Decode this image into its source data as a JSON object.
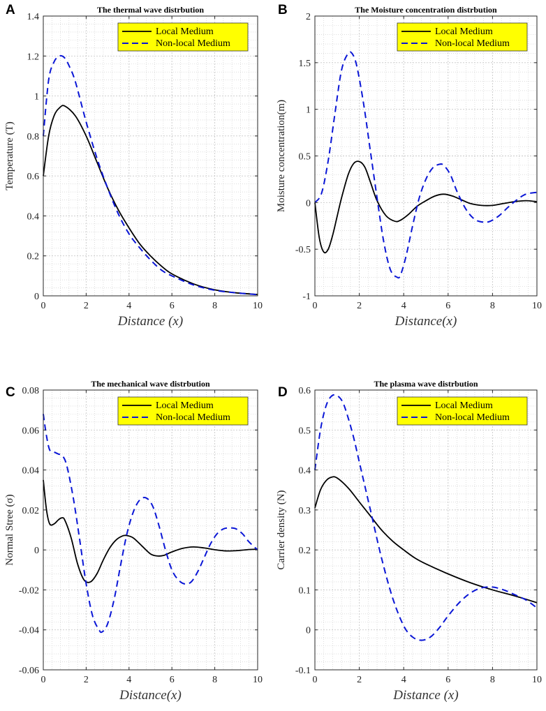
{
  "colors": {
    "local": "#000000",
    "nonlocal": "#0a16d6",
    "legend_bg": "#ffff00",
    "grid": "#c8c8c8",
    "axes": "#262626"
  },
  "legend": {
    "local_label": "Local Medium",
    "nonlocal_label": "Non-local Medium"
  },
  "chart_data": [
    {
      "panel": "A",
      "type": "line",
      "title": "The thermal wave distrbution",
      "xlabel": "Distance (x)",
      "ylabel": "Temperature (T)",
      "xlim": [
        0,
        10
      ],
      "ylim": [
        0,
        1.4
      ],
      "xticks": [
        0,
        2,
        4,
        6,
        8,
        10
      ],
      "xtick_labels": [
        "0",
        "2",
        "4",
        "6",
        "8",
        "10"
      ],
      "yticks": [
        0,
        0.2,
        0.4,
        0.6,
        0.8,
        1,
        1.2,
        1.4
      ],
      "ytick_labels": [
        "0",
        "0.2",
        "0.4",
        "0.6",
        "0.8",
        "1",
        "1.2",
        "1.4"
      ],
      "legend_position": "top-right",
      "series": [
        {
          "name": "Local Medium",
          "style": "solid",
          "x": [
            0,
            0.25,
            0.5,
            0.75,
            1,
            1.5,
            2,
            2.5,
            3,
            3.5,
            4,
            4.5,
            5,
            5.5,
            6,
            7,
            8,
            9,
            10
          ],
          "y": [
            0.6,
            0.8,
            0.9,
            0.94,
            0.95,
            0.9,
            0.8,
            0.67,
            0.54,
            0.43,
            0.34,
            0.26,
            0.2,
            0.15,
            0.11,
            0.06,
            0.03,
            0.015,
            0.007
          ]
        },
        {
          "name": "Non-local Medium",
          "style": "dashed",
          "x": [
            0,
            0.25,
            0.5,
            0.75,
            1,
            1.25,
            1.5,
            2,
            2.5,
            3,
            3.5,
            4,
            4.5,
            5,
            5.5,
            6,
            7,
            8,
            9,
            10
          ],
          "y": [
            0.8,
            1.08,
            1.17,
            1.2,
            1.19,
            1.14,
            1.07,
            0.87,
            0.69,
            0.54,
            0.41,
            0.31,
            0.24,
            0.18,
            0.13,
            0.1,
            0.055,
            0.028,
            0.015,
            0.006
          ]
        }
      ]
    },
    {
      "panel": "B",
      "type": "line",
      "title": "The Moisture concentration distrbution",
      "xlabel": "Distance(x)",
      "ylabel": "Moisture concentration(m)",
      "xlim": [
        0,
        10
      ],
      "ylim": [
        -1,
        2
      ],
      "xticks": [
        0,
        2,
        4,
        6,
        8,
        10
      ],
      "xtick_labels": [
        "0",
        "2",
        "4",
        "6",
        "8",
        "10"
      ],
      "yticks": [
        -1,
        -0.5,
        0,
        0.5,
        1,
        1.5,
        2
      ],
      "ytick_labels": [
        "-1",
        "-0.5",
        "0",
        "0.5",
        "1",
        "1.5",
        "2"
      ],
      "legend_position": "top-right",
      "series": [
        {
          "name": "Local Medium",
          "style": "solid",
          "x": [
            0,
            0.2,
            0.4,
            0.6,
            0.8,
            1,
            1.2,
            1.5,
            1.75,
            2,
            2.25,
            2.5,
            2.8,
            3.2,
            3.6,
            3.85,
            4.2,
            4.6,
            5,
            5.4,
            5.8,
            6.2,
            6.6,
            7,
            7.5,
            8,
            8.5,
            9,
            9.5,
            10
          ],
          "y": [
            0,
            -0.38,
            -0.53,
            -0.5,
            -0.35,
            -0.15,
            0.05,
            0.3,
            0.42,
            0.44,
            0.38,
            0.22,
            0.02,
            -0.14,
            -0.2,
            -0.19,
            -0.13,
            -0.04,
            0.02,
            0.07,
            0.09,
            0.07,
            0.03,
            -0.01,
            -0.03,
            -0.03,
            -0.01,
            0.01,
            0.02,
            0.01
          ]
        },
        {
          "name": "Non-local Medium",
          "style": "dashed",
          "x": [
            0,
            0.3,
            0.6,
            0.9,
            1.2,
            1.5,
            1.7,
            1.9,
            2.2,
            2.5,
            2.8,
            3.1,
            3.4,
            3.7,
            3.85,
            4.1,
            4.4,
            4.7,
            5,
            5.3,
            5.6,
            5.8,
            6.1,
            6.4,
            6.8,
            7.2,
            7.6,
            7.9,
            8.3,
            8.7,
            9.1,
            9.5,
            10
          ],
          "y": [
            0,
            0.1,
            0.45,
            0.95,
            1.42,
            1.6,
            1.59,
            1.45,
            1.05,
            0.55,
            0.05,
            -0.42,
            -0.72,
            -0.8,
            -0.78,
            -0.58,
            -0.25,
            0.05,
            0.25,
            0.37,
            0.41,
            0.4,
            0.3,
            0.12,
            -0.07,
            -0.18,
            -0.21,
            -0.2,
            -0.14,
            -0.05,
            0.03,
            0.09,
            0.11
          ]
        }
      ]
    },
    {
      "panel": "C",
      "type": "line",
      "title": "The mechanical wave distrbution",
      "xlabel": "Distance(x)",
      "ylabel": "Normal Stree (σ)",
      "xlim": [
        0,
        10
      ],
      "ylim": [
        -0.06,
        0.08
      ],
      "xticks": [
        0,
        2,
        4,
        6,
        8,
        10
      ],
      "xtick_labels": [
        "0",
        "2",
        "4",
        "6",
        "8",
        "10"
      ],
      "yticks": [
        -0.06,
        -0.04,
        -0.02,
        0,
        0.02,
        0.04,
        0.06,
        0.08
      ],
      "ytick_labels": [
        "-0.06",
        "-0.04",
        "-0.02",
        "0",
        "0.02",
        "0.04",
        "0.06",
        "0.08"
      ],
      "legend_position": "top-right",
      "series": [
        {
          "name": "Local Medium",
          "style": "solid",
          "x": [
            0,
            0.15,
            0.3,
            0.5,
            0.7,
            0.85,
            1,
            1.3,
            1.6,
            1.9,
            2.2,
            2.5,
            2.8,
            3.1,
            3.4,
            3.7,
            3.9,
            4.2,
            4.6,
            5,
            5.3,
            5.6,
            6,
            6.5,
            7,
            7.5,
            8,
            8.5,
            9,
            9.5,
            10
          ],
          "y": [
            0.035,
            0.02,
            0.013,
            0.013,
            0.015,
            0.016,
            0.015,
            0.006,
            -0.007,
            -0.015,
            -0.016,
            -0.012,
            -0.005,
            0.001,
            0.005,
            0.007,
            0.0072,
            0.006,
            0.002,
            -0.002,
            -0.003,
            -0.0028,
            -0.001,
            0.0008,
            0.0015,
            0.001,
            0.0001,
            -0.0005,
            -0.0004,
            0.0001,
            0.0004
          ]
        },
        {
          "name": "Non-local Medium",
          "style": "dashed",
          "x": [
            0,
            0.15,
            0.3,
            0.5,
            0.7,
            0.9,
            1.1,
            1.4,
            1.7,
            2,
            2.3,
            2.6,
            2.75,
            3,
            3.3,
            3.6,
            3.9,
            4.2,
            4.5,
            4.8,
            5.1,
            5.4,
            5.7,
            6,
            6.3,
            6.6,
            6.9,
            7.2,
            7.5,
            7.8,
            8.1,
            8.4,
            8.7,
            9,
            9.3,
            9.6,
            10
          ],
          "y": [
            0.068,
            0.057,
            0.05,
            0.049,
            0.048,
            0.047,
            0.042,
            0.026,
            0.005,
            -0.017,
            -0.033,
            -0.04,
            -0.041,
            -0.037,
            -0.025,
            -0.008,
            0.008,
            0.019,
            0.025,
            0.026,
            0.022,
            0.012,
            0.0,
            -0.01,
            -0.015,
            -0.017,
            -0.016,
            -0.011,
            -0.004,
            0.003,
            0.008,
            0.0105,
            0.011,
            0.0105,
            0.008,
            0.004,
            0.0
          ]
        }
      ]
    },
    {
      "panel": "D",
      "type": "line",
      "title": "The plasma wave distrbution",
      "xlabel": "Distance (x)",
      "ylabel": "Carrier density (N)",
      "xlim": [
        0,
        10
      ],
      "ylim": [
        -0.1,
        0.6
      ],
      "xticks": [
        0,
        2,
        4,
        6,
        8,
        10
      ],
      "xtick_labels": [
        "0",
        "2",
        "4",
        "6",
        "8",
        "10"
      ],
      "yticks": [
        -0.1,
        0,
        0.1,
        0.2,
        0.3,
        0.4,
        0.5,
        0.6
      ],
      "ytick_labels": [
        "-0.1",
        "0",
        "0.1",
        "0.2",
        "0.3",
        "0.4",
        "0.5",
        "0.6"
      ],
      "legend_position": "top-right",
      "series": [
        {
          "name": "Local Medium",
          "style": "solid",
          "x": [
            0,
            0.25,
            0.5,
            0.75,
            1,
            1.5,
            2,
            2.5,
            3,
            3.5,
            4,
            4.5,
            5,
            6,
            7,
            8,
            9,
            10
          ],
          "y": [
            0.305,
            0.35,
            0.373,
            0.382,
            0.38,
            0.355,
            0.32,
            0.285,
            0.25,
            0.222,
            0.2,
            0.18,
            0.165,
            0.14,
            0.118,
            0.1,
            0.085,
            0.068
          ]
        },
        {
          "name": "Non-local Medium",
          "style": "dashed",
          "x": [
            0,
            0.25,
            0.5,
            0.75,
            1,
            1.25,
            1.5,
            1.75,
            2,
            2.5,
            3,
            3.5,
            4,
            4.4,
            4.8,
            5.2,
            5.6,
            6,
            6.5,
            7,
            7.5,
            8,
            8.5,
            9,
            9.5,
            10
          ],
          "y": [
            0.4,
            0.5,
            0.56,
            0.585,
            0.586,
            0.57,
            0.53,
            0.48,
            0.42,
            0.3,
            0.18,
            0.08,
            0.01,
            -0.018,
            -0.026,
            -0.018,
            0.005,
            0.035,
            0.068,
            0.092,
            0.105,
            0.107,
            0.1,
            0.088,
            0.075,
            0.055
          ]
        }
      ]
    }
  ]
}
